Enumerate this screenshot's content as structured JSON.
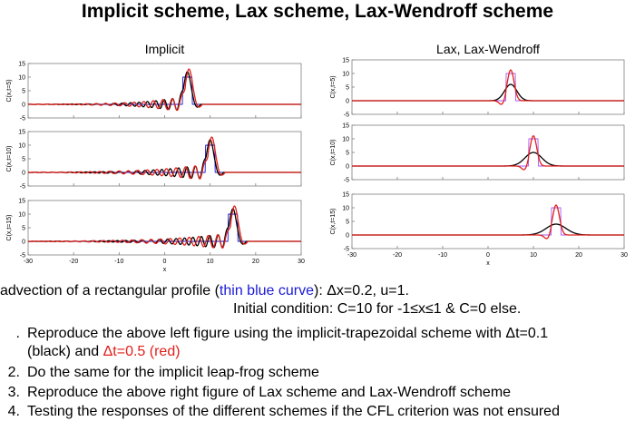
{
  "title": "Implicit scheme, Lax scheme, Lax-Wendroff scheme",
  "colors": {
    "black": "#000000",
    "red": "#e0201b",
    "blue": "#1a1ad6",
    "magenta": "#a855f7",
    "axes": "#808080"
  },
  "chart_data": [
    {
      "type": "line",
      "title": "Implicit",
      "xlabel": "x",
      "xlim": [
        -30,
        30
      ],
      "xticks": [
        "-30",
        "-20",
        "-10",
        "0",
        "10",
        "20",
        "30"
      ],
      "panels": [
        {
          "ylabel": "C(x,t=5)",
          "ylim": [
            -5,
            15
          ],
          "yticks": [
            "15",
            "10",
            "5",
            "0",
            "-5"
          ],
          "peak_x": 5
        },
        {
          "ylabel": "C(x,t=10)",
          "ylim": [
            -5,
            15
          ],
          "yticks": [
            "15",
            "10",
            "5",
            "0",
            "-5"
          ],
          "peak_x": 10
        },
        {
          "ylabel": "C(x,t=15)",
          "ylim": [
            -5,
            15
          ],
          "yticks": [
            "15",
            "10",
            "5",
            "0",
            "-5"
          ],
          "peak_x": 15
        }
      ],
      "series": [
        {
          "name": "thin blue curve",
          "color": "#1a1ad6",
          "shape": "rectangular pulse, width 2, height 10"
        },
        {
          "name": "Δt=0.1",
          "color": "#000000",
          "shape": "dispersive trailing oscillations, peak ~12"
        },
        {
          "name": "Δt=0.5",
          "color": "#e0201b",
          "shape": "dispersive trailing oscillations, peak ~13"
        }
      ]
    },
    {
      "type": "line",
      "title": "Lax, Lax-Wendroff",
      "xlabel": "x",
      "xlim": [
        -30,
        30
      ],
      "xticks": [
        "-30",
        "-20",
        "-10",
        "0",
        "10",
        "20",
        "30"
      ],
      "panels": [
        {
          "ylabel": "C(x,t=5)",
          "ylim": [
            -5,
            15
          ],
          "yticks": [
            "15",
            "10",
            "5",
            "0",
            "-5"
          ],
          "peak_x": 5
        },
        {
          "ylabel": "C(x,t=10)",
          "ylim": [
            -5,
            15
          ],
          "yticks": [
            "15",
            "10",
            "5",
            "0",
            "-5"
          ],
          "peak_x": 10
        },
        {
          "ylabel": "C(x,t=15)",
          "ylim": [
            -5,
            15
          ],
          "yticks": [
            "15",
            "10",
            "5",
            "0",
            "-5"
          ],
          "peak_x": 15
        }
      ],
      "series": [
        {
          "name": "initial profile",
          "color": "#a855f7",
          "shape": "rectangular pulse, width 2, height 10"
        },
        {
          "name": "Lax",
          "color": "#000000",
          "shape": "diffused gaussian, peak 6 → 4"
        },
        {
          "name": "Lax-Wendroff",
          "color": "#e0201b",
          "shape": "narrow peak ~11 with small undershoots"
        }
      ]
    }
  ],
  "text": {
    "line1_a": "advection of a rectangular profile (",
    "line1_b": "thin blue curve",
    "line1_c": "): Δx=0.2, u=1.",
    "line2": "Initial condition: C=10 for -1≤x≤1 & C=0 else.",
    "items": [
      {
        "num": ".",
        "a": "Reproduce the above left figure using the implicit-trapezoidal scheme with Δt=0.1"
      },
      {
        "num": "",
        "a": "(black) and ",
        "b": "Δt=0.5 (red)"
      },
      {
        "num": "2.",
        "a": "Do the same for the implicit leap-frog scheme"
      },
      {
        "num": "3.",
        "a": "Reproduce the above right figure of Lax scheme and Lax-Wendroff scheme"
      },
      {
        "num": "4.",
        "a": "Testing the responses of the different schemes if the CFL criterion was not ensured"
      }
    ]
  }
}
